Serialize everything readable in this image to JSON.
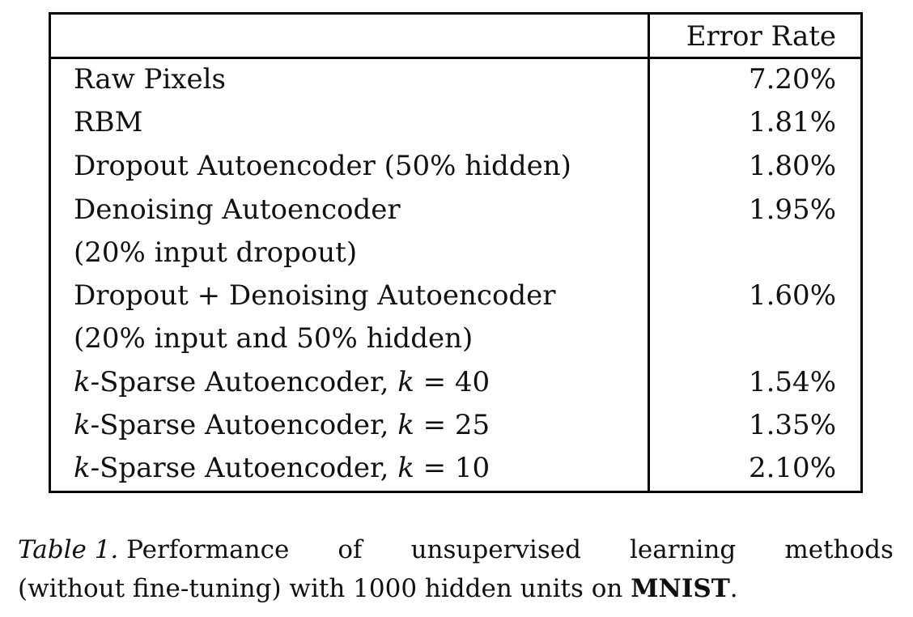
{
  "table": {
    "header": {
      "error_rate": "Error Rate"
    },
    "rows": [
      {
        "method_lines": [
          "Raw Pixels"
        ],
        "error_rate": "7.20%"
      },
      {
        "method_lines": [
          "RBM"
        ],
        "error_rate": "1.81%"
      },
      {
        "method_lines": [
          "Dropout Autoencoder (50% hidden)"
        ],
        "error_rate": "1.80%"
      },
      {
        "method_lines": [
          "Denoising Autoencoder",
          "(20% input dropout)"
        ],
        "error_rate": "1.95%"
      },
      {
        "method_lines": [
          "Dropout + Denoising Autoencoder",
          "(20% input and 50% hidden)"
        ],
        "error_rate": "1.60%"
      },
      {
        "method_k": "k",
        "method_rest": "-Sparse Autoencoder, ",
        "k_symbol": "k",
        "k_value": " = 40",
        "error_rate": "1.54%"
      },
      {
        "method_k": "k",
        "method_rest": "-Sparse Autoencoder, ",
        "k_symbol": "k",
        "k_value": " = 25",
        "error_rate": "1.35%"
      },
      {
        "method_k": "k",
        "method_rest": "-Sparse Autoencoder, ",
        "k_symbol": "k",
        "k_value": " = 10",
        "error_rate": "2.10%"
      }
    ]
  },
  "caption": {
    "label": "Table 1.",
    "line1_words": [
      "Performance",
      "of",
      "unsupervised",
      "learning",
      "methods"
    ],
    "line2_text": "(without fine-tuning) with 1000 hidden units on ",
    "dataset": "MNIST",
    "end_punct": "."
  }
}
